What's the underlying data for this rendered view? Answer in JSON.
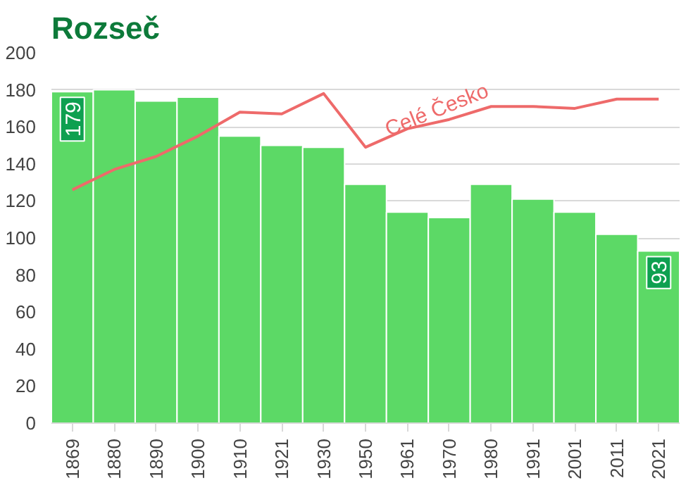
{
  "chart_data": {
    "type": "bar",
    "title": "Rozseč",
    "categories": [
      "1869",
      "1880",
      "1890",
      "1900",
      "1910",
      "1921",
      "1930",
      "1950",
      "1961",
      "1970",
      "1980",
      "1991",
      "2001",
      "2011",
      "2021"
    ],
    "series": [
      {
        "color": "#5cd966",
        "values": [
          179,
          180,
          174,
          176,
          155,
          150,
          149,
          129,
          114,
          111,
          129,
          121,
          114,
          102,
          93
        ],
        "value_labels": [
          "179",
          null,
          null,
          null,
          null,
          null,
          null,
          null,
          null,
          null,
          null,
          null,
          null,
          null,
          "93"
        ]
      },
      {
        "type": "line",
        "color": "#ee6a6a",
        "values": [
          126,
          137,
          144,
          155,
          168,
          167,
          178,
          149,
          159,
          164,
          171,
          171,
          170,
          175,
          175
        ]
      }
    ],
    "annotations": [
      "Celé Česko"
    ],
    "ylim": [
      0,
      200
    ],
    "yticks": [
      0,
      20,
      40,
      60,
      80,
      100,
      120,
      140,
      160,
      180,
      200
    ],
    "grid": "y"
  }
}
